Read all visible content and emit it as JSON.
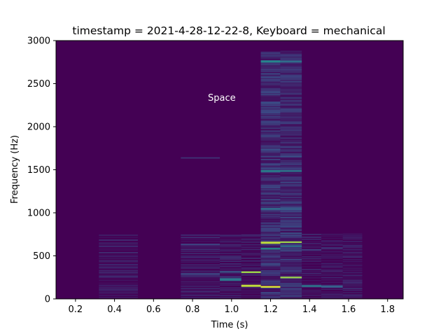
{
  "chart_data": {
    "type": "heatmap",
    "title": "timestamp = 2021-4-28-12-22-8, Keyboard = mechanical",
    "xlabel": "Time (s)",
    "ylabel": "Frequency (Hz)",
    "xlim": [
      0.1,
      1.88
    ],
    "ylim": [
      0,
      3000
    ],
    "xticks": [
      0.2,
      0.4,
      0.6,
      0.8,
      1.0,
      1.2,
      1.4,
      1.6,
      1.8
    ],
    "xtick_labels": [
      "0.2",
      "0.4",
      "0.6",
      "0.8",
      "1.0",
      "1.2",
      "1.4",
      "1.6",
      "1.8"
    ],
    "yticks": [
      0,
      500,
      1000,
      1500,
      2000,
      2500,
      3000
    ],
    "ytick_labels": [
      "0",
      "500",
      "1000",
      "1500",
      "2000",
      "2500",
      "3000"
    ],
    "colormap": "viridis",
    "background_color": "#440154",
    "grid": false,
    "annotations": [
      {
        "text": "Space",
        "x": 0.95,
        "y": 2300
      }
    ],
    "time_bins": [
      [
        0.1,
        0.32
      ],
      [
        0.32,
        0.52
      ],
      [
        0.52,
        0.74
      ],
      [
        0.74,
        0.94
      ],
      [
        0.94,
        1.05
      ],
      [
        1.05,
        1.15
      ],
      [
        1.15,
        1.25
      ],
      [
        1.25,
        1.36
      ],
      [
        1.36,
        1.46
      ],
      [
        1.46,
        1.57
      ],
      [
        1.57,
        1.67
      ],
      [
        1.67,
        1.77
      ],
      [
        1.77,
        1.88
      ]
    ],
    "cells": [
      {
        "t": [
          1.15,
          1.25
        ],
        "f": [
          130,
          150
        ],
        "v": 0.95
      },
      {
        "t": [
          1.05,
          1.15
        ],
        "f": [
          140,
          165
        ],
        "v": 0.9
      },
      {
        "t": [
          1.05,
          1.15
        ],
        "f": [
          300,
          320
        ],
        "v": 0.85
      },
      {
        "t": [
          1.25,
          1.36
        ],
        "f": [
          240,
          258
        ],
        "v": 0.85
      },
      {
        "t": [
          1.15,
          1.25
        ],
        "f": [
          640,
          665
        ],
        "v": 0.9
      },
      {
        "t": [
          1.25,
          1.36
        ],
        "f": [
          650,
          668
        ],
        "v": 0.85
      },
      {
        "t": [
          1.15,
          1.25
        ],
        "f": [
          575,
          590
        ],
        "v": 0.5
      },
      {
        "t": [
          1.25,
          1.36
        ],
        "f": [
          605,
          620
        ],
        "v": 0.4
      },
      {
        "t": [
          0.94,
          1.05
        ],
        "f": [
          210,
          240
        ],
        "v": 0.4
      },
      {
        "t": [
          0.94,
          1.05
        ],
        "f": [
          305,
          320
        ],
        "v": 0.3
      },
      {
        "t": [
          1.15,
          1.25
        ],
        "f": [
          1475,
          1495
        ],
        "v": 0.45
      },
      {
        "t": [
          1.25,
          1.36
        ],
        "f": [
          1475,
          1495
        ],
        "v": 0.4
      },
      {
        "t": [
          1.15,
          1.25
        ],
        "f": [
          2745,
          2770
        ],
        "v": 0.45
      },
      {
        "t": [
          1.25,
          1.36
        ],
        "f": [
          2745,
          2770
        ],
        "v": 0.35
      },
      {
        "t": [
          1.15,
          1.25
        ],
        "f": [
          1035,
          1055
        ],
        "v": 0.35
      },
      {
        "t": [
          1.25,
          1.36
        ],
        "f": [
          1035,
          1055
        ],
        "v": 0.3
      },
      {
        "t": [
          1.36,
          1.46
        ],
        "f": [
          140,
          160
        ],
        "v": 0.4
      },
      {
        "t": [
          1.46,
          1.57
        ],
        "f": [
          130,
          155
        ],
        "v": 0.3
      },
      {
        "t": [
          0.74,
          0.94
        ],
        "f": [
          620,
          640
        ],
        "v": 0.2
      },
      {
        "t": [
          0.74,
          0.94
        ],
        "f": [
          280,
          300
        ],
        "v": 0.2
      },
      {
        "t": [
          0.74,
          0.94
        ],
        "f": [
          1630,
          1645
        ],
        "v": 0.15
      },
      {
        "t": [
          1.36,
          1.46
        ],
        "f": [
          560,
          575
        ],
        "v": 0.2
      },
      {
        "t": [
          1.46,
          1.57
        ],
        "f": [
          580,
          595
        ],
        "v": 0.15
      }
    ]
  }
}
